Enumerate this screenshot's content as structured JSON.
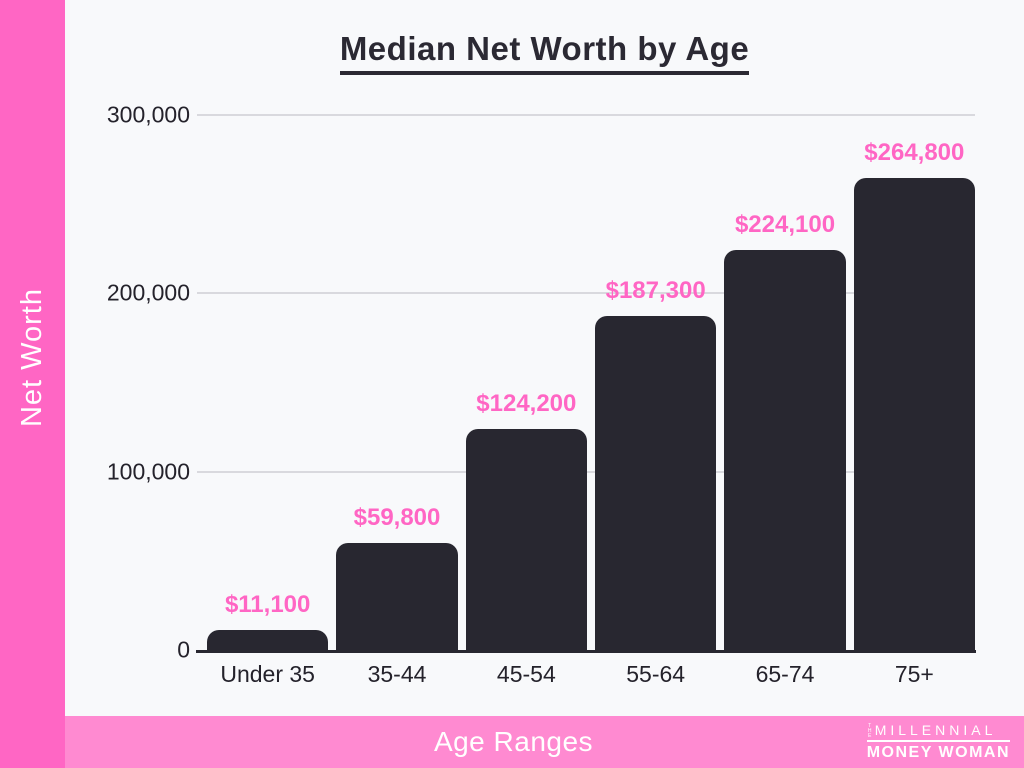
{
  "page": {
    "title": "Median Net Worth by Age",
    "y_axis_title": "Net Worth",
    "x_axis_title": "Age Ranges"
  },
  "chart_data": {
    "type": "bar",
    "title": "Median Net Worth by Age",
    "xlabel": "Age Ranges",
    "ylabel": "Net Worth",
    "categories": [
      "Under 35",
      "35-44",
      "45-54",
      "55-64",
      "65-74",
      "75+"
    ],
    "values": [
      11100,
      59800,
      124200,
      187300,
      224100,
      264800
    ],
    "value_labels": [
      "$11,100",
      "$59,800",
      "$124,200",
      "$187,300",
      "$224,100",
      "$264,800"
    ],
    "y_ticks": [
      0,
      100000,
      200000,
      300000
    ],
    "y_tick_labels": [
      "0",
      "100,000",
      "200,000",
      "300,000"
    ],
    "ylim": [
      0,
      300000
    ],
    "grid": "horizontal-only",
    "legend": "none"
  },
  "branding": {
    "logo_the": "THE",
    "logo_line1": "MILLENNIAL",
    "logo_line2": "MONEY WOMAN"
  },
  "colors": {
    "accent_pink": "#ff66c4",
    "footer_pink": "#ff8ad1",
    "value_label_pink": "#ff66c4",
    "bar_dark": "#282730",
    "title_dark": "#2b2933",
    "tick_text_dark": "#24222b",
    "background": "#f8f9fb",
    "gridline_gray": "#d9d9de",
    "white": "#ffffff"
  }
}
